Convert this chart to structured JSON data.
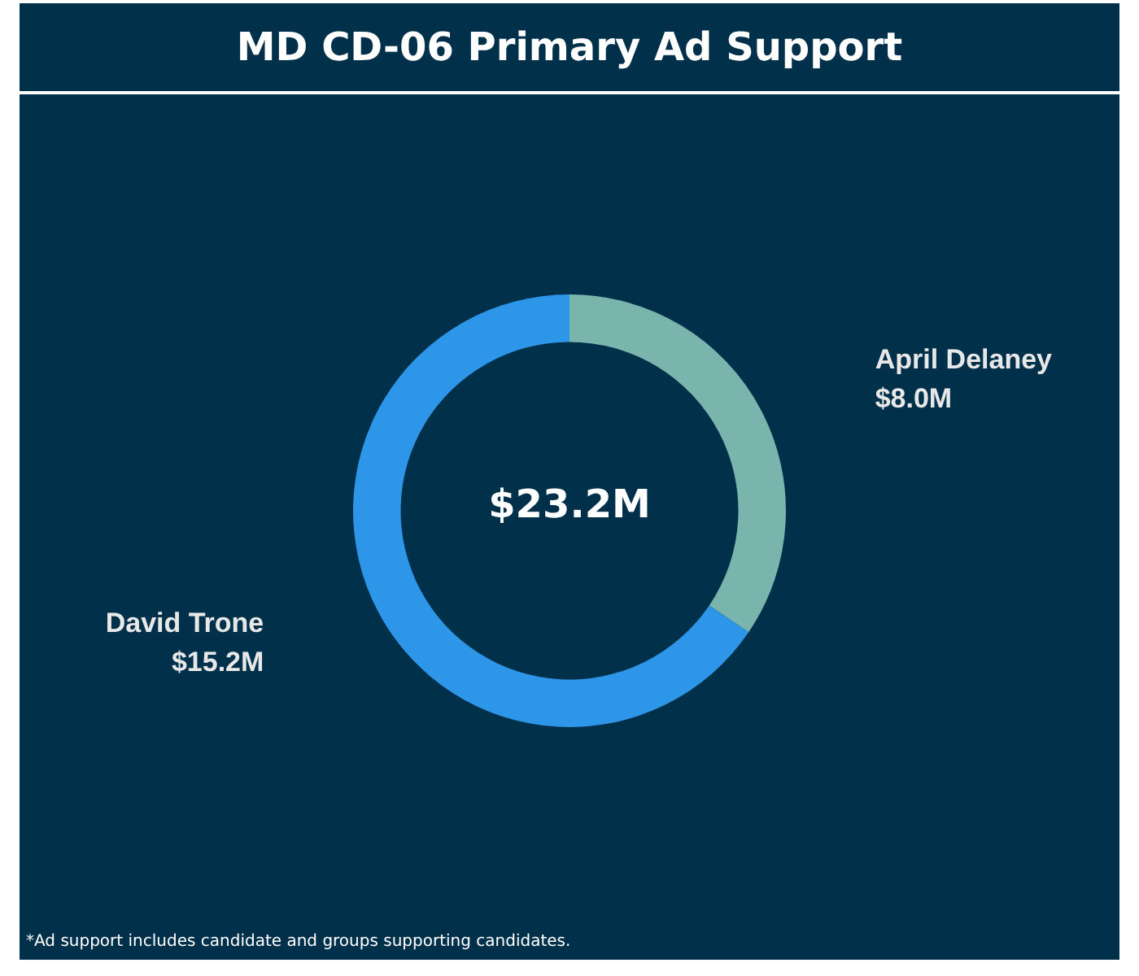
{
  "chart_data": {
    "type": "donut",
    "title": "MD CD-06 Primary Ad Support",
    "categories": [
      "April Delaney",
      "David Trone"
    ],
    "values": [
      8.0,
      15.2
    ],
    "value_labels": [
      "$8.0M",
      "$15.2M"
    ],
    "colors": [
      "#7ab5ad",
      "#2e96e8"
    ],
    "annotations": [
      "$23.2M",
      "*Ad support includes candidate and groups supporting candidates."
    ],
    "legend": false
  }
}
